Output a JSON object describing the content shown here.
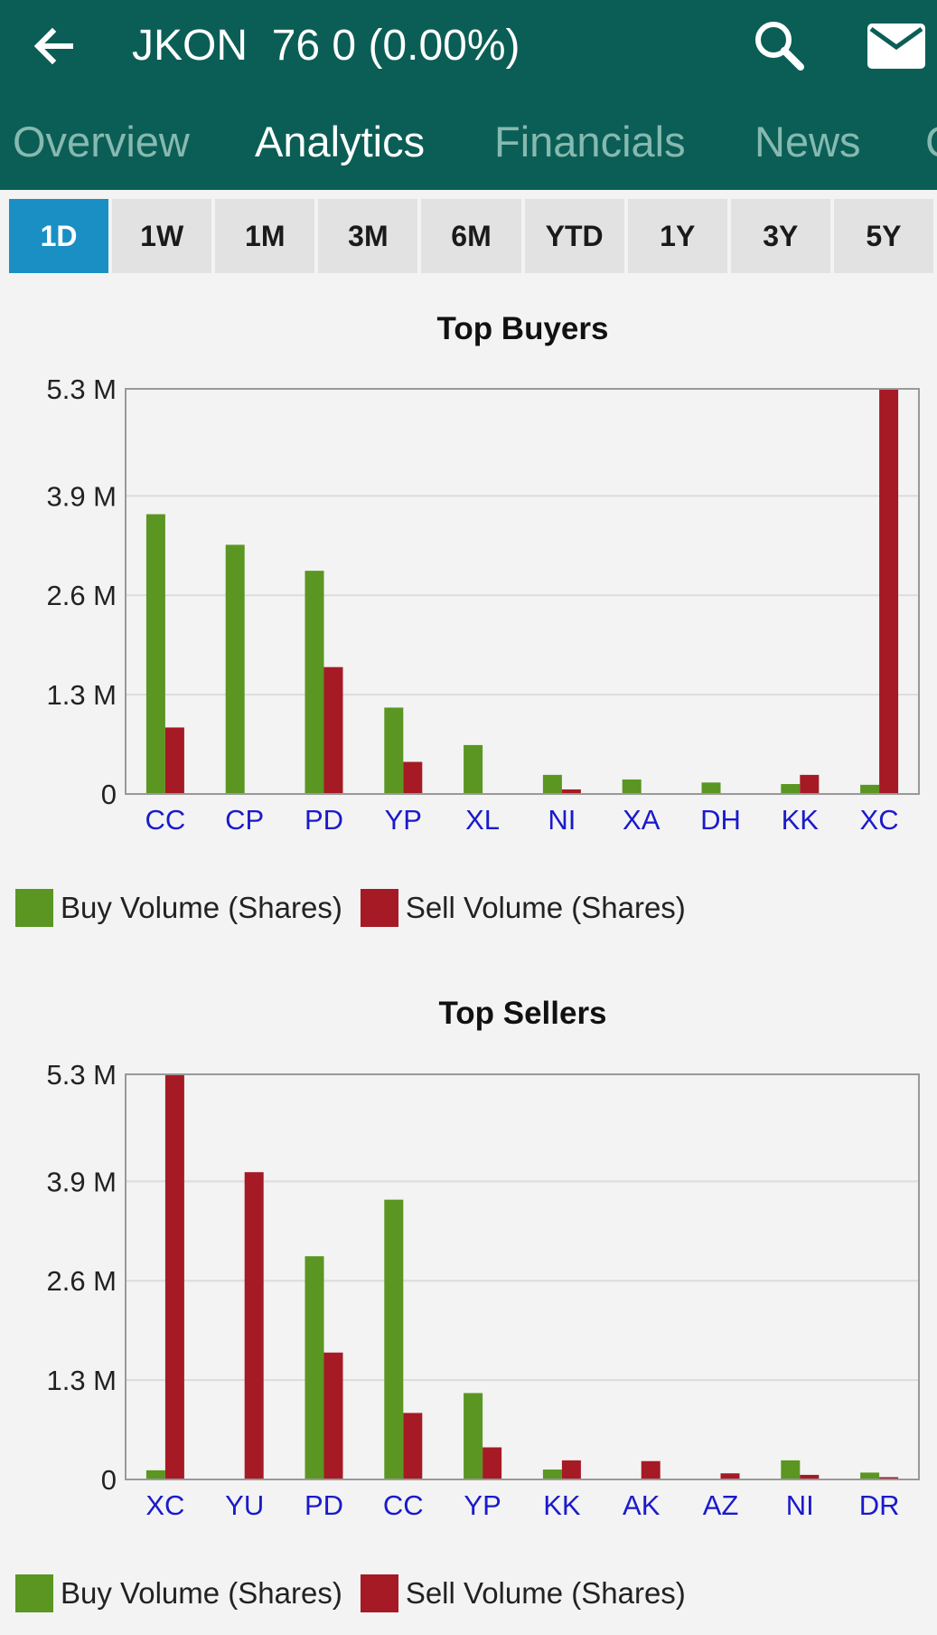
{
  "header": {
    "title": "JKON  76 0 (0.00%)",
    "back_icon": "arrow-left-icon",
    "search_icon": "search-icon",
    "mail_icon": "mail-icon",
    "background_color": "#0b5e55"
  },
  "tabs": [
    {
      "label": "Overview",
      "active": false
    },
    {
      "label": "Analytics",
      "active": true
    },
    {
      "label": "Financials",
      "active": false
    },
    {
      "label": "News",
      "active": false
    },
    {
      "label": "C",
      "active": false
    }
  ],
  "ranges": [
    {
      "label": "1D",
      "active": true
    },
    {
      "label": "1W",
      "active": false
    },
    {
      "label": "1M",
      "active": false
    },
    {
      "label": "3M",
      "active": false
    },
    {
      "label": "6M",
      "active": false
    },
    {
      "label": "YTD",
      "active": false
    },
    {
      "label": "1Y",
      "active": false
    },
    {
      "label": "3Y",
      "active": false
    },
    {
      "label": "5Y",
      "active": false
    }
  ],
  "legend": {
    "buy_label": "Buy Volume (Shares)",
    "sell_label": "Sell Volume (Shares)"
  },
  "colors": {
    "buy": "#5a9621",
    "sell": "#a51a24",
    "category_label": "#1a1acc",
    "active_range": "#1a8fc4"
  },
  "chart_data": [
    {
      "type": "bar",
      "title": "Top Buyers",
      "categories": [
        "CC",
        "CP",
        "PD",
        "YP",
        "XL",
        "NI",
        "XA",
        "DH",
        "KK",
        "XC"
      ],
      "yticks": [
        0,
        1.3,
        2.6,
        3.9,
        5.3
      ],
      "ytick_labels": [
        "0",
        "1.3 M",
        "2.6 M",
        "3.9 M",
        "5.3 M"
      ],
      "ylim": [
        0,
        5.3
      ],
      "unit": "M",
      "series": [
        {
          "name": "Buy Volume (Shares)",
          "values": [
            3.66,
            3.26,
            2.92,
            1.13,
            0.64,
            0.25,
            0.19,
            0.15,
            0.13,
            0.12
          ]
        },
        {
          "name": "Sell Volume (Shares)",
          "values": [
            0.87,
            0,
            1.66,
            0.42,
            0,
            0.06,
            0,
            0,
            0.25,
            5.3
          ]
        }
      ],
      "legend_position": "bottom-left",
      "grid": true
    },
    {
      "type": "bar",
      "title": "Top Sellers",
      "categories": [
        "XC",
        "YU",
        "PD",
        "CC",
        "YP",
        "KK",
        "AK",
        "AZ",
        "NI",
        "DR"
      ],
      "yticks": [
        0,
        1.3,
        2.6,
        3.9,
        5.3
      ],
      "ytick_labels": [
        "0",
        "1.3 M",
        "2.6 M",
        "3.9 M",
        "5.3 M"
      ],
      "ylim": [
        0,
        5.3
      ],
      "unit": "M",
      "series": [
        {
          "name": "Buy Volume (Shares)",
          "values": [
            0.12,
            0,
            2.92,
            3.66,
            1.13,
            0.13,
            0,
            0,
            0.25,
            0.09
          ]
        },
        {
          "name": "Sell Volume (Shares)",
          "values": [
            5.3,
            4.02,
            1.66,
            0.87,
            0.42,
            0.25,
            0.24,
            0.08,
            0.06,
            0.03
          ]
        }
      ],
      "legend_position": "bottom-left",
      "grid": true
    }
  ]
}
